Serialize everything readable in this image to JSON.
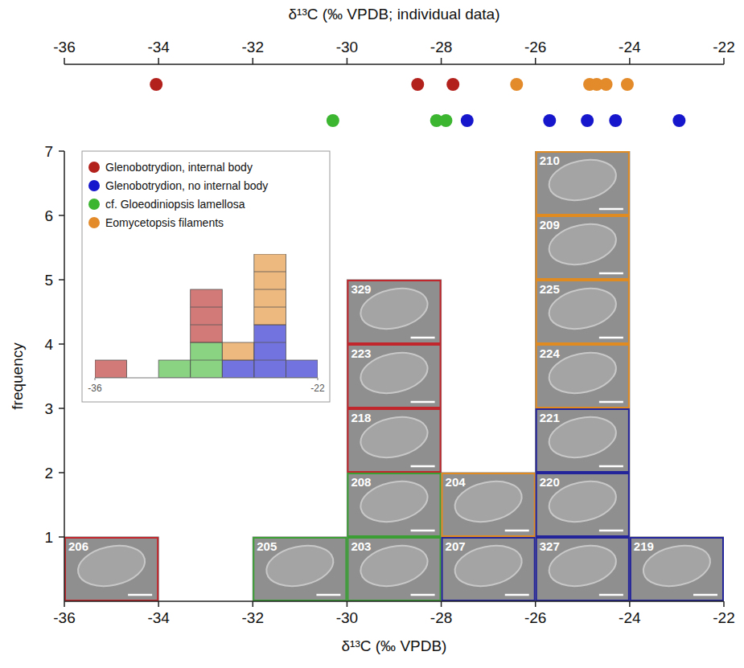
{
  "chart_data": [
    {
      "type": "histogram",
      "x_label": "δ¹³C (‰ VPDB)",
      "y_label": "frequency",
      "bins": [
        -36,
        -34,
        -32,
        -30,
        -28,
        -26,
        -24,
        -22
      ],
      "counts": [
        1,
        0,
        1,
        5,
        2,
        7,
        1
      ],
      "stacks": [
        [
          {
            "label": "206",
            "color": "#c0262c"
          }
        ],
        [],
        [
          {
            "label": "205",
            "color": "#3a9e35"
          }
        ],
        [
          {
            "label": "203",
            "color": "#3a9e35"
          },
          {
            "label": "208",
            "color": "#3a9e35"
          },
          {
            "label": "218",
            "color": "#c0262c"
          },
          {
            "label": "223",
            "color": "#c0262c"
          },
          {
            "label": "329",
            "color": "#c0262c"
          }
        ],
        [
          {
            "label": "207",
            "color": "#23239a"
          },
          {
            "label": "204",
            "color": "#e08a22"
          }
        ],
        [
          {
            "label": "327",
            "color": "#23239a"
          },
          {
            "label": "220",
            "color": "#23239a"
          },
          {
            "label": "221",
            "color": "#23239a"
          },
          {
            "label": "224",
            "color": "#e08a22"
          },
          {
            "label": "225",
            "color": "#e08a22"
          },
          {
            "label": "209",
            "color": "#e08a22"
          },
          {
            "label": "210",
            "color": "#e08a22"
          }
        ],
        [
          {
            "label": "219",
            "color": "#23239a"
          }
        ]
      ],
      "xlim": [
        -36,
        -22
      ],
      "xticks": [
        -36,
        -34,
        -32,
        -30,
        -28,
        -26,
        -24,
        -22
      ],
      "ylim": [
        0,
        7
      ],
      "yticks": [
        1,
        2,
        3,
        4,
        5,
        6,
        7
      ]
    },
    {
      "type": "scatter",
      "x_label": "δ¹³C (‰ VPDB; individual data)",
      "series": [
        {
          "name": "Glenobotrydion, internal body",
          "color": "#b3211d",
          "x": [
            -34.05,
            -28.5,
            -27.75
          ]
        },
        {
          "name": "Glenobotrydion, no internal body",
          "color": "#1616cc",
          "x": [
            -27.45,
            -25.7,
            -24.9,
            -24.3,
            -22.95
          ]
        },
        {
          "name": "cf. Gloeodiniopsis lamellosa",
          "color": "#3cb531",
          "x": [
            -30.3,
            -28.1,
            -27.9
          ]
        },
        {
          "name": "Eomycetopsis filaments",
          "color": "#e38a2a",
          "x": [
            -26.4,
            -24.85,
            -24.7,
            -24.5,
            -24.05
          ]
        }
      ],
      "xlim": [
        -36,
        -22
      ],
      "xticks": [
        -36,
        -34,
        -32,
        -30,
        -28,
        -26,
        -24,
        -22
      ]
    },
    {
      "type": "bar",
      "stacked": true,
      "bins": [
        -36,
        -34,
        -32,
        -30,
        -28,
        -26,
        -24,
        -22
      ],
      "series": [
        {
          "values": [
            1,
            0,
            0,
            3,
            0,
            0,
            0
          ]
        },
        {
          "values": [
            0,
            0,
            0,
            0,
            1,
            3,
            1
          ]
        },
        {
          "values": [
            0,
            0,
            1,
            2,
            0,
            0,
            0
          ]
        },
        {
          "values": [
            0,
            0,
            0,
            0,
            1,
            4,
            0
          ]
        }
      ],
      "xlim": [
        -36,
        -22
      ],
      "xticks": [
        -36,
        -22
      ],
      "ylim": [
        0,
        7
      ],
      "tick_labels": "x",
      "legend": "top-left"
    }
  ]
}
